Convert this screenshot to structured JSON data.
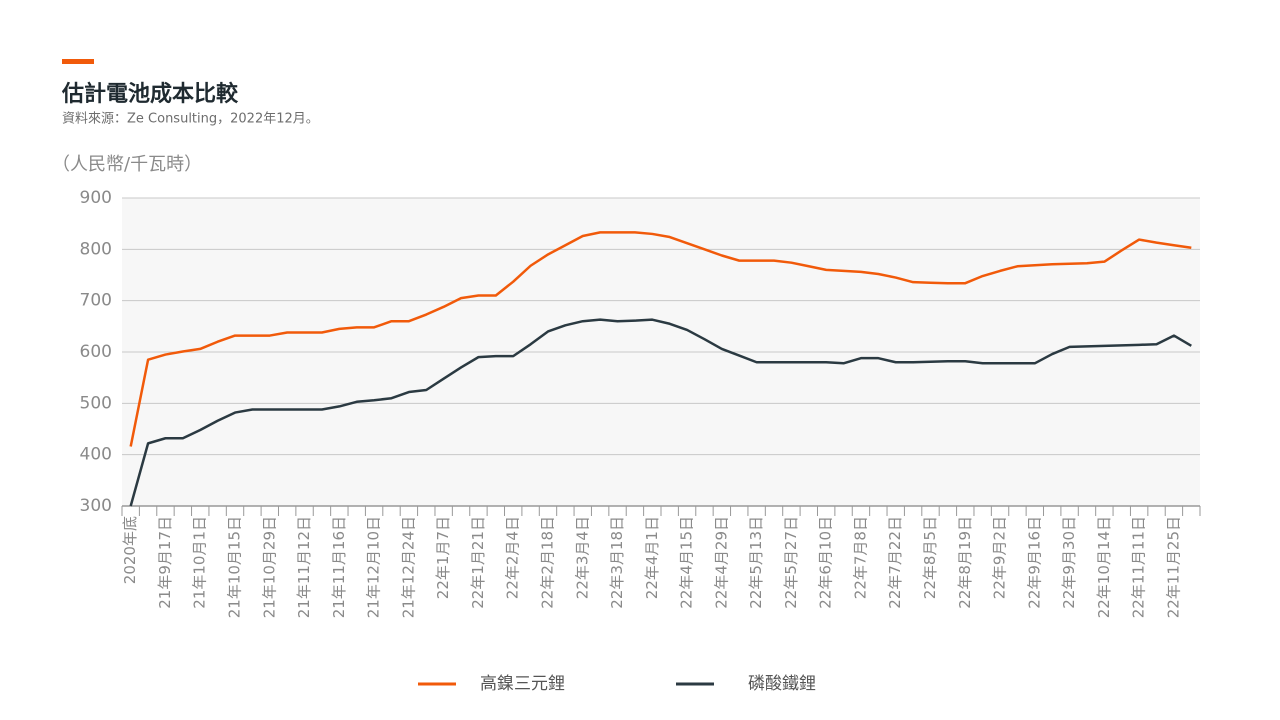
{
  "chart_data": {
    "type": "line",
    "title": "估計電池成本比較",
    "subtitle": "資料來源：Ze Consulting，2022年12月。",
    "y_axis_label": "（人民幣/千瓦時）",
    "categories": [
      "2020年底",
      null,
      "21年9月17日",
      null,
      "21年10月1日",
      null,
      "21年10月15日",
      null,
      "21年10月29日",
      null,
      "21年11月12日",
      null,
      "21年11月16日",
      null,
      "21年12月10日",
      null,
      "21年12月24日",
      null,
      "22年1月7日",
      null,
      "22年1月21日",
      null,
      "22年2月4日",
      null,
      "22年2月18日",
      null,
      "22年3月4日",
      null,
      "22年3月18日",
      null,
      "22年4月1日",
      null,
      "22年4月15日",
      null,
      "22年4月29日",
      null,
      "22年5月13日",
      null,
      "22年5月27日",
      null,
      "22年6月10日",
      null,
      "22年7月8日",
      null,
      "22年7月22日",
      null,
      "22年8月5日",
      null,
      "22年8月19日",
      null,
      "22年9月2日",
      null,
      "22年9月16日",
      null,
      "22年9月30日",
      null,
      "22年10月14日",
      null,
      "22年11月11日",
      null,
      "22年11月25日",
      null
    ],
    "series": [
      {
        "name": "高鎳三元鋰",
        "color": "#f15a0a",
        "values": [
          416,
          585,
          595,
          601,
          606,
          620,
          632,
          632,
          632,
          638,
          638,
          638,
          645,
          648,
          648,
          660,
          660,
          673,
          688,
          705,
          710,
          710,
          737,
          768,
          790,
          808,
          826,
          833,
          833,
          833,
          830,
          824,
          812,
          800,
          788,
          778,
          778,
          778,
          774,
          767,
          760,
          758,
          756,
          752,
          745,
          736,
          735,
          734,
          734,
          748,
          758,
          767,
          769,
          771,
          772,
          773,
          776,
          798,
          819,
          813,
          808,
          803
        ]
      },
      {
        "name": "磷酸鐵鋰",
        "color": "#2b3a42",
        "values": [
          300,
          422,
          432,
          432,
          448,
          466,
          482,
          488,
          488,
          488,
          488,
          488,
          494,
          503,
          506,
          510,
          522,
          526,
          548,
          570,
          590,
          592,
          592,
          615,
          640,
          652,
          660,
          663,
          660,
          661,
          663,
          655,
          643,
          625,
          606,
          593,
          580,
          580,
          580,
          580,
          580,
          578,
          588,
          588,
          580,
          580,
          581,
          582,
          582,
          578,
          578,
          578,
          578,
          596,
          610,
          611,
          612,
          613,
          614,
          615,
          632,
          612
        ]
      }
    ],
    "ylim": [
      300,
      900
    ],
    "yticks": [
      300,
      400,
      500,
      600,
      700,
      800,
      900
    ],
    "grid": true
  }
}
